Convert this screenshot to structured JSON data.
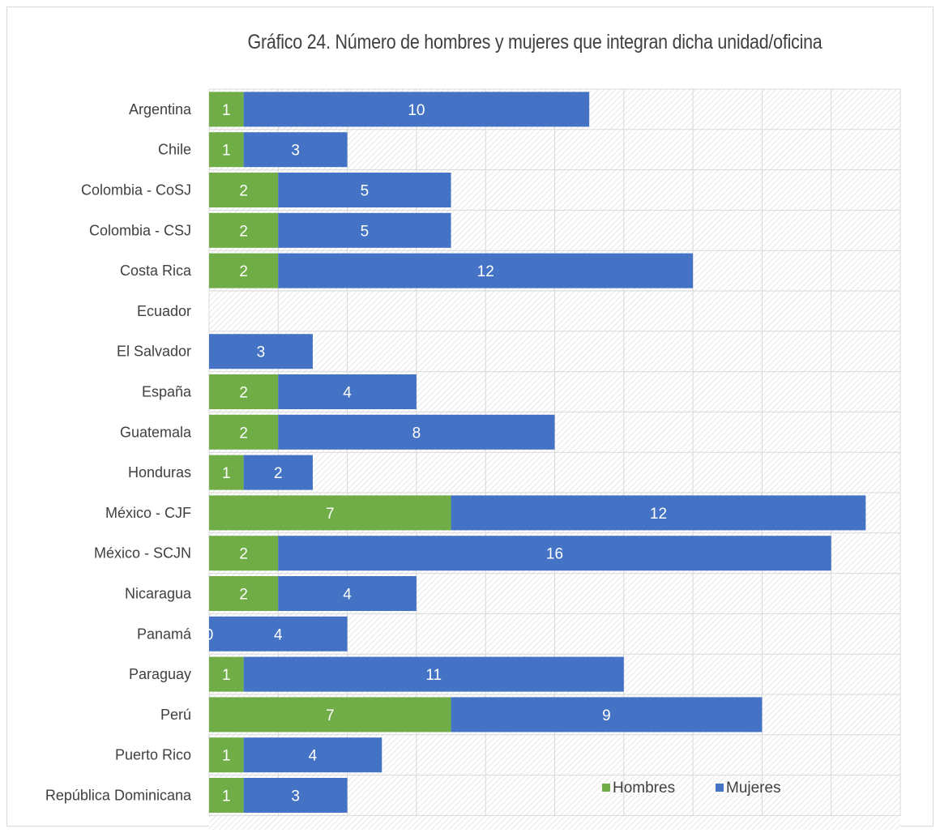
{
  "chart_data": {
    "type": "bar",
    "orientation": "horizontal",
    "stacked": true,
    "title": "Gráfico 24. Número de hombres y mujeres que integran dicha unidad/oficina",
    "xlabel": "",
    "ylabel": "",
    "xlim": [
      0,
      20
    ],
    "grid": true,
    "legend_position": "bottom-right",
    "categories": [
      "Argentina",
      "Chile",
      "Colombia - CoSJ",
      "Colombia - CSJ",
      "Costa Rica",
      "Ecuador",
      "El Salvador",
      "España",
      "Guatemala",
      "Honduras",
      "México - CJF",
      "México - SCJN",
      "Nicaragua",
      "Panamá",
      "Paraguay",
      "Perú",
      "Puerto Rico",
      "República Dominicana"
    ],
    "series": [
      {
        "name": "Hombres",
        "color": "#70ad47",
        "values": [
          1,
          1,
          2,
          2,
          2,
          null,
          null,
          2,
          2,
          1,
          7,
          2,
          2,
          0,
          1,
          7,
          1,
          1
        ]
      },
      {
        "name": "Mujeres",
        "color": "#4472c4",
        "values": [
          10,
          3,
          5,
          5,
          12,
          null,
          3,
          4,
          8,
          2,
          12,
          16,
          4,
          4,
          11,
          9,
          4,
          3
        ]
      }
    ]
  }
}
